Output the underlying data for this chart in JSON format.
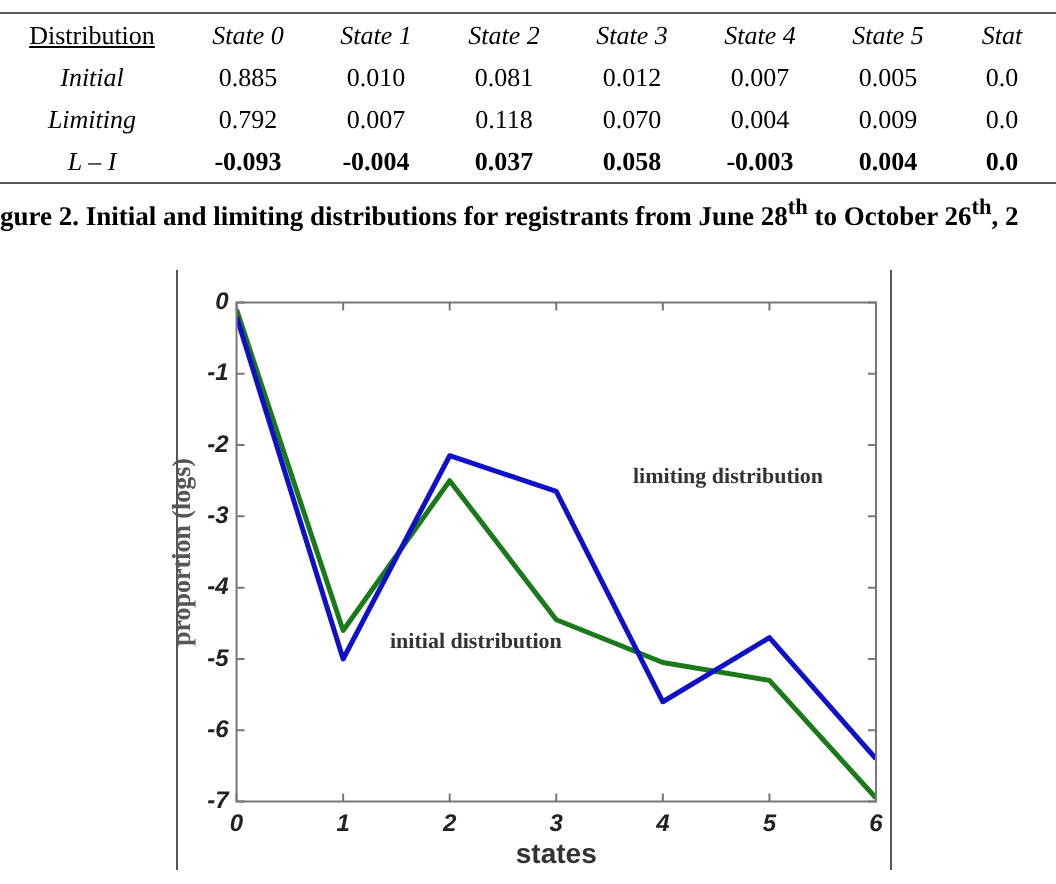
{
  "chart_data": {
    "type": "line",
    "xlabel": "states",
    "ylabel": "proportion (logs)",
    "x": [
      0,
      1,
      2,
      3,
      4,
      5,
      6
    ],
    "xlim": [
      0,
      6
    ],
    "xticks": [
      0,
      1,
      2,
      3,
      4,
      5,
      6
    ],
    "ylim": [
      -7,
      0
    ],
    "yticks": [
      -7,
      -6,
      -5,
      -4,
      -3,
      -2,
      -1,
      0
    ],
    "grid": false,
    "legend": false,
    "marker": "none",
    "line_style": "solid",
    "series": [
      {
        "color": "#1010c8",
        "values": [
          -0.2,
          -5.0,
          -2.15,
          -2.65,
          -5.6,
          -4.7,
          -6.4
        ]
      },
      {
        "color": "#1a7a1a",
        "values": [
          -0.1,
          -4.6,
          -2.5,
          -4.45,
          -5.05,
          -5.3,
          -6.95
        ]
      }
    ],
    "annotations": [
      "Distribution\tState 0\tState 1\tState 2\tState 3\tState 4\tState 5\tStat",
      "Initial\t0.885\t0.010\t0.081\t0.012\t0.007\t0.005\t0.0",
      "Limiting\t0.792\t0.007\t0.118\t0.070\t0.004\t0.009\t0.0",
      "L – I\t-0.093\t-0.004\t0.037\t0.058\t-0.003\t0.004\t0.0",
      "gure 2. Initial and limiting distributions for registrants from June 28$^{th}$ to October 26$^{th}$, 2",
      "limiting distribution",
      "initial distribution"
    ]
  }
}
